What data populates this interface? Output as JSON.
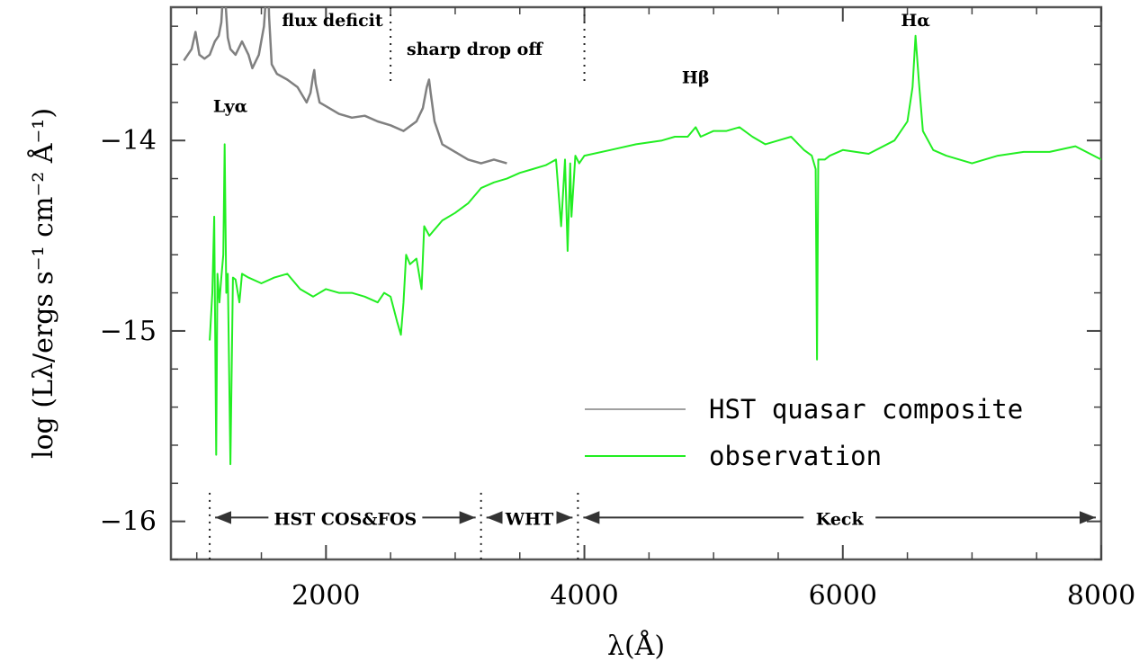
{
  "chart_data": {
    "type": "line",
    "xlabel": "λ(Å)",
    "ylabel": "log (Lλ/ergs s⁻¹ cm⁻² Å⁻¹)",
    "xlim": [
      800,
      8000
    ],
    "ylim": [
      -16.2,
      -13.3
    ],
    "x_ticks": [
      2000,
      4000,
      6000,
      8000
    ],
    "y_ticks": [
      -14,
      -15,
      -16
    ],
    "x_tick_labels": [
      "2000",
      "4000",
      "6000",
      "8000"
    ],
    "y_tick_labels": [
      "−14",
      "−15",
      "−16"
    ],
    "legend_position": "bottom-right",
    "series": [
      {
        "name": "HST quasar composite",
        "color": "#808080",
        "x": [
          900,
          960,
          990,
          1020,
          1060,
          1100,
          1140,
          1170,
          1190,
          1205,
          1216,
          1225,
          1240,
          1260,
          1300,
          1350,
          1400,
          1430,
          1480,
          1520,
          1540,
          1549,
          1560,
          1580,
          1620,
          1700,
          1780,
          1850,
          1880,
          1900,
          1909,
          1920,
          1950,
          2000,
          2100,
          2200,
          2300,
          2400,
          2500,
          2600,
          2700,
          2750,
          2780,
          2798,
          2810,
          2840,
          2900,
          3000,
          3100,
          3200,
          3300,
          3400
        ],
        "y": [
          -13.58,
          -13.52,
          -13.43,
          -13.55,
          -13.57,
          -13.55,
          -13.48,
          -13.45,
          -13.38,
          -13.2,
          -13.1,
          -13.3,
          -13.46,
          -13.52,
          -13.55,
          -13.48,
          -13.55,
          -13.62,
          -13.55,
          -13.4,
          -13.2,
          -13.1,
          -13.35,
          -13.6,
          -13.65,
          -13.68,
          -13.72,
          -13.8,
          -13.75,
          -13.66,
          -13.63,
          -13.7,
          -13.8,
          -13.82,
          -13.86,
          -13.88,
          -13.87,
          -13.9,
          -13.92,
          -13.95,
          -13.9,
          -13.83,
          -13.72,
          -13.68,
          -13.75,
          -13.9,
          -14.02,
          -14.06,
          -14.1,
          -14.12,
          -14.1,
          -14.12
        ]
      },
      {
        "name": "observation",
        "color": "#22ee22",
        "x": [
          1100,
          1120,
          1135,
          1150,
          1160,
          1175,
          1190,
          1205,
          1216,
          1228,
          1240,
          1260,
          1280,
          1300,
          1330,
          1350,
          1400,
          1500,
          1600,
          1700,
          1800,
          1900,
          2000,
          2100,
          2200,
          2300,
          2400,
          2450,
          2500,
          2550,
          2580,
          2600,
          2620,
          2650,
          2700,
          2740,
          2760,
          2800,
          2900,
          3000,
          3100,
          3200,
          3300,
          3400,
          3500,
          3600,
          3700,
          3780,
          3820,
          3850,
          3870,
          3890,
          3900,
          3930,
          3960,
          4000,
          4200,
          4400,
          4600,
          4700,
          4800,
          4861,
          4900,
          5000,
          5100,
          5200,
          5300,
          5400,
          5500,
          5600,
          5700,
          5760,
          5790,
          5800,
          5810,
          5830,
          5860,
          5900,
          6000,
          6200,
          6400,
          6500,
          6540,
          6563,
          6590,
          6620,
          6700,
          6800,
          7000,
          7200,
          7400,
          7600,
          7800,
          8000
        ],
        "y": [
          -15.05,
          -14.8,
          -14.4,
          -15.65,
          -14.7,
          -14.85,
          -14.72,
          -14.6,
          -14.02,
          -14.8,
          -14.7,
          -15.7,
          -14.72,
          -14.73,
          -14.85,
          -14.7,
          -14.72,
          -14.75,
          -14.72,
          -14.7,
          -14.78,
          -14.82,
          -14.78,
          -14.8,
          -14.8,
          -14.82,
          -14.85,
          -14.8,
          -14.82,
          -14.95,
          -15.02,
          -14.85,
          -14.6,
          -14.65,
          -14.62,
          -14.78,
          -14.45,
          -14.5,
          -14.42,
          -14.38,
          -14.33,
          -14.25,
          -14.22,
          -14.2,
          -14.17,
          -14.15,
          -14.13,
          -14.1,
          -14.45,
          -14.1,
          -14.58,
          -14.12,
          -14.4,
          -14.08,
          -14.12,
          -14.08,
          -14.05,
          -14.02,
          -14.0,
          -13.98,
          -13.98,
          -13.93,
          -13.98,
          -13.95,
          -13.95,
          -13.93,
          -13.98,
          -14.02,
          -14.0,
          -13.98,
          -14.05,
          -14.08,
          -14.15,
          -15.15,
          -14.1,
          -14.1,
          -14.1,
          -14.08,
          -14.05,
          -14.07,
          -14.0,
          -13.9,
          -13.72,
          -13.45,
          -13.7,
          -13.95,
          -14.05,
          -14.08,
          -14.12,
          -14.08,
          -14.06,
          -14.06,
          -14.03,
          -14.1
        ]
      }
    ],
    "annotations": [
      {
        "text": "flux deficit",
        "x": 2050,
        "y": -13.4
      },
      {
        "text": "sharp drop off",
        "x": 3150,
        "y": -13.55
      },
      {
        "text": "Lyα",
        "x": 1260,
        "y": -13.85
      },
      {
        "text": "Hβ",
        "x": 4861,
        "y": -13.7
      },
      {
        "text": "Hα",
        "x": 6563,
        "y": -13.4
      }
    ],
    "ranges": [
      {
        "label": "HST COS&FOS",
        "x0": 1100,
        "x1": 3200,
        "y": -15.98
      },
      {
        "label": "WHT",
        "x0": 3200,
        "x1": 3950,
        "y": -15.98
      },
      {
        "label": "Keck",
        "x0": 3950,
        "x1": 8000,
        "y": -15.98
      }
    ],
    "dotted_markers": [
      {
        "x": 2500,
        "y0": -13.3,
        "y1": -13.7
      },
      {
        "x": 4000,
        "y0": -13.3,
        "y1": -13.7
      },
      {
        "x": 1100,
        "y0": -15.85,
        "y1": -16.2
      },
      {
        "x": 3200,
        "y0": -15.85,
        "y1": -16.2
      },
      {
        "x": 3950,
        "y0": -15.85,
        "y1": -16.2
      }
    ]
  }
}
